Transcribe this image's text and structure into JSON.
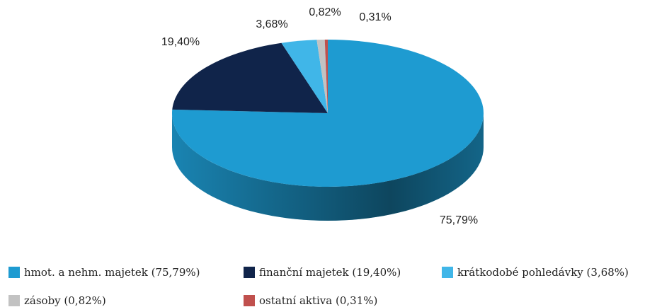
{
  "chart_data": {
    "type": "pie",
    "categories": [
      "hmot. a nehm. majetek (75,79%)",
      "finanční majetek (19,40%)",
      "krátkodobé pohledávky (3,68%)",
      "zásoby (0,82%)",
      "ostatní aktiva (0,31%)"
    ],
    "values": [
      75.79,
      19.4,
      3.68,
      0.82,
      0.31
    ],
    "value_labels": [
      "75,79%",
      "19,40%",
      "3,68%",
      "0,82%",
      "0,31%"
    ],
    "colors": [
      "#1e9bd1",
      "#10244a",
      "#40b6e8",
      "#c2c2c2",
      "#c0504d"
    ]
  }
}
